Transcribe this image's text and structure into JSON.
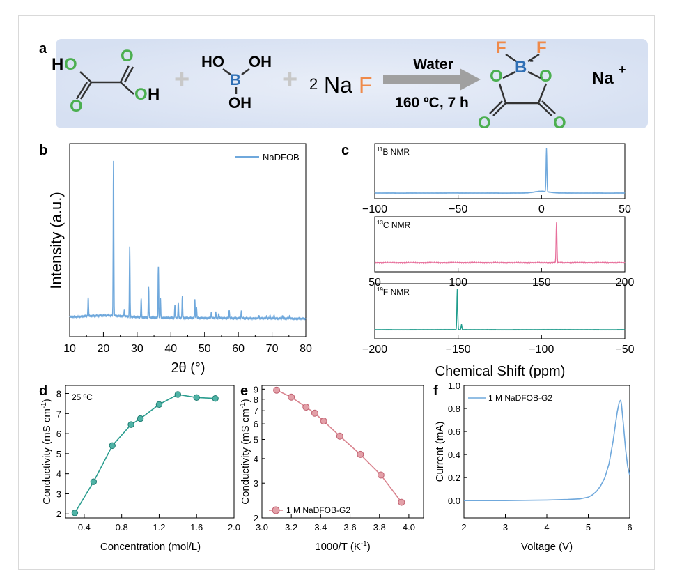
{
  "scheme": {
    "panel_label": "a",
    "oxalic_acid": {
      "atoms": [
        "H",
        "O",
        "O",
        "O",
        "H"
      ]
    },
    "boric_acid": {
      "atoms": [
        "HO",
        "OH",
        "B",
        "OH"
      ]
    },
    "plus": "+",
    "naf": {
      "coef": "2",
      "na": "Na",
      "f": "F"
    },
    "arrow": {
      "top": "Water",
      "bottom": "160 ºC, 7 h"
    },
    "product": {
      "f1": "F",
      "f2": "F",
      "b": "B",
      "charge": "-",
      "o1": "O",
      "o2": "O",
      "o3": "O",
      "o4": "O",
      "cation": "Na",
      "cation_charge": "+"
    },
    "colors": {
      "o": "#4caf50",
      "b": "#2f6fb5",
      "f": "#ef8a4a",
      "band": "#dde6f5",
      "arrow": "#a0a0a0",
      "plus": "#c8c8c8"
    }
  },
  "chart_data": [
    {
      "panel": "b",
      "type": "line",
      "xlabel": "2θ (°)",
      "ylabel": "Intensity (a.u.)",
      "xlim": [
        10,
        80
      ],
      "xticks": [
        "10",
        "20",
        "30",
        "40",
        "50",
        "60",
        "70",
        "80"
      ],
      "legend": "top-right",
      "series": [
        {
          "name": "NaDFOB",
          "color": "#6fa8dc"
        }
      ],
      "peaks_2theta": [
        15.5,
        23.0,
        26.2,
        27.8,
        31.2,
        33.4,
        36.3,
        36.9,
        41.2,
        42.2,
        43.4,
        47.1,
        47.6,
        52.0,
        53.3,
        54.2,
        57.3,
        60.9,
        66.1,
        68.4,
        69.4,
        70.6,
        73.1,
        75.2
      ],
      "peak_heights": [
        0.12,
        1.0,
        0.04,
        0.45,
        0.12,
        0.2,
        0.33,
        0.13,
        0.08,
        0.1,
        0.14,
        0.12,
        0.07,
        0.04,
        0.04,
        0.03,
        0.05,
        0.05,
        0.02,
        0.02,
        0.02,
        0.02,
        0.02,
        0.02
      ]
    },
    {
      "panel": "c",
      "type": "line",
      "xlabel": "Chemical Shift (ppm)",
      "subplots": [
        {
          "label_sup": "11",
          "label": "B NMR",
          "xlim": [
            -100,
            50
          ],
          "xticks": [
            "−100",
            "−50",
            "0",
            "50"
          ],
          "peaks": [
            3.0
          ],
          "color": "#6fa8dc"
        },
        {
          "label_sup": "13",
          "label": "C NMR",
          "xlim": [
            50,
            200
          ],
          "xticks": [
            "50",
            "100",
            "150",
            "200"
          ],
          "peaks": [
            159.0
          ],
          "color": "#e76f9b"
        },
        {
          "label_sup": "19",
          "label": "F NMR",
          "xlim": [
            -200,
            -50
          ],
          "xticks": [
            "−200",
            "−150",
            "−100",
            "−50"
          ],
          "peaks": [
            -150.5,
            -148.0
          ],
          "color": "#1f9c8c"
        }
      ]
    },
    {
      "panel": "d",
      "type": "line",
      "annotation": "25 ºC",
      "xlabel": "Concentration (mol/L)",
      "ylabel": "Conductivity (mS cm",
      "ylabel_sup": "-1",
      "ylabel_tail": ")",
      "xlim": [
        0.2,
        2.0
      ],
      "ylim": [
        1.8,
        8.4
      ],
      "xticks": [
        "0.4",
        "0.8",
        "1.2",
        "1.6",
        "2.0"
      ],
      "yticks": [
        "2",
        "3",
        "4",
        "5",
        "6",
        "7",
        "8"
      ],
      "x": [
        0.3,
        0.5,
        0.7,
        0.9,
        1.0,
        1.2,
        1.4,
        1.6,
        1.8
      ],
      "y": [
        2.05,
        3.6,
        5.4,
        6.45,
        6.75,
        7.45,
        7.95,
        7.8,
        7.75
      ],
      "color": "#2a9d8f"
    },
    {
      "panel": "e",
      "type": "line",
      "yscale": "log",
      "xlabel": "1000/T (K",
      "xlabel_sup": "-1",
      "xlabel_tail": ")",
      "ylabel": "Conductivity (mS cm",
      "ylabel_sup": "-1",
      "ylabel_tail": ")",
      "xlim": [
        3.0,
        4.1
      ],
      "ylim": [
        2,
        9.4
      ],
      "xticks": [
        "3.0",
        "3.2",
        "3.4",
        "3.6",
        "3.8",
        "4.0"
      ],
      "yticks": [
        "2",
        "3",
        "4",
        "5",
        "6",
        "7",
        "8",
        "9"
      ],
      "legend": "bottom-left",
      "series": [
        {
          "name": "1 M NaDFOB-G2",
          "color": "#d9838e"
        }
      ],
      "x": [
        3.1,
        3.2,
        3.3,
        3.36,
        3.42,
        3.53,
        3.67,
        3.81,
        3.95
      ],
      "y": [
        8.9,
        8.2,
        7.3,
        6.8,
        6.2,
        5.2,
        4.2,
        3.3,
        2.4
      ]
    },
    {
      "panel": "f",
      "type": "line",
      "xlabel": "Voltage (V)",
      "ylabel": "Current (mA)",
      "xlim": [
        2,
        6
      ],
      "ylim": [
        -0.15,
        1.0
      ],
      "xticks": [
        "2",
        "3",
        "4",
        "5",
        "6"
      ],
      "yticks": [
        "0.0",
        "0.2",
        "0.4",
        "0.6",
        "0.8",
        "1.0"
      ],
      "legend": "top-left",
      "series": [
        {
          "name": "1 M NaDFOB-G2",
          "color": "#6fa8dc"
        }
      ],
      "x": [
        2.0,
        3.0,
        4.0,
        4.5,
        4.8,
        5.0,
        5.1,
        5.2,
        5.3,
        5.4,
        5.5,
        5.6,
        5.65,
        5.7,
        5.75,
        5.78,
        5.8,
        5.85,
        5.9,
        5.95,
        6.0
      ],
      "y": [
        0.0,
        0.0,
        0.005,
        0.01,
        0.015,
        0.03,
        0.05,
        0.08,
        0.13,
        0.2,
        0.32,
        0.52,
        0.65,
        0.77,
        0.86,
        0.87,
        0.84,
        0.65,
        0.45,
        0.3,
        0.22
      ]
    }
  ]
}
